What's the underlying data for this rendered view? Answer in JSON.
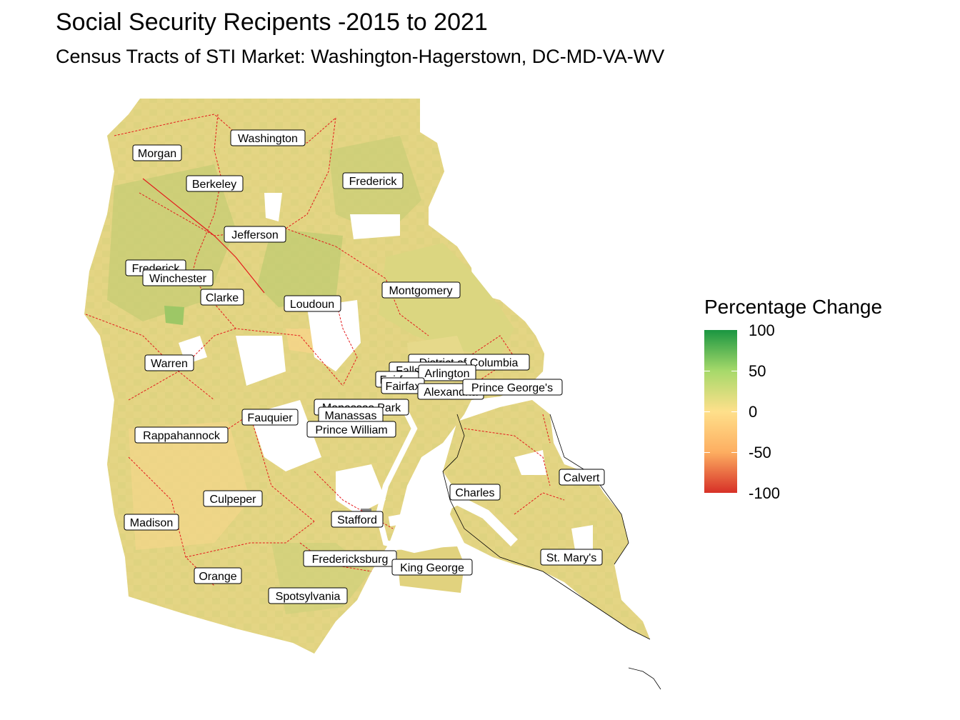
{
  "title": "Social Security Recipents -2015 to 2021",
  "subtitle": "Census Tracts of STI Market: Washington-Hagerstown, DC-MD-VA-WV",
  "legend": {
    "title": "Percentage Change",
    "ticks": [
      "100",
      "50",
      "0",
      "-50",
      "-100"
    ],
    "colors": {
      "high": "#1a9641",
      "mid_high": "#a6d96a",
      "mid": "#fee08b",
      "mid_low": "#fdae61",
      "low": "#d73027"
    }
  },
  "counties": [
    {
      "label": "Washington"
    },
    {
      "label": "Morgan"
    },
    {
      "label": "Berkeley"
    },
    {
      "label": "Frederick"
    },
    {
      "label": "Jefferson"
    },
    {
      "label": "Frederick"
    },
    {
      "label": "Winchester"
    },
    {
      "label": "Clarke"
    },
    {
      "label": "Loudoun"
    },
    {
      "label": "Montgomery"
    },
    {
      "label": "Warren"
    },
    {
      "label": "District of Columbia"
    },
    {
      "label": "Falls Church"
    },
    {
      "label": "Arlington"
    },
    {
      "label": "Fairfax"
    },
    {
      "label": "Fairfax"
    },
    {
      "label": "Alexandria"
    },
    {
      "label": "Prince George's"
    },
    {
      "label": "Manassas Park"
    },
    {
      "label": "Manassas"
    },
    {
      "label": "Fauquier"
    },
    {
      "label": "Prince William"
    },
    {
      "label": "Rappahannock"
    },
    {
      "label": "Calvert"
    },
    {
      "label": "Charles"
    },
    {
      "label": "Culpeper"
    },
    {
      "label": "Madison"
    },
    {
      "label": "Stafford"
    },
    {
      "label": "St. Mary's"
    },
    {
      "label": "Fredericksburg"
    },
    {
      "label": "King George"
    },
    {
      "label": "Orange"
    },
    {
      "label": "Spotsylvania"
    }
  ]
}
